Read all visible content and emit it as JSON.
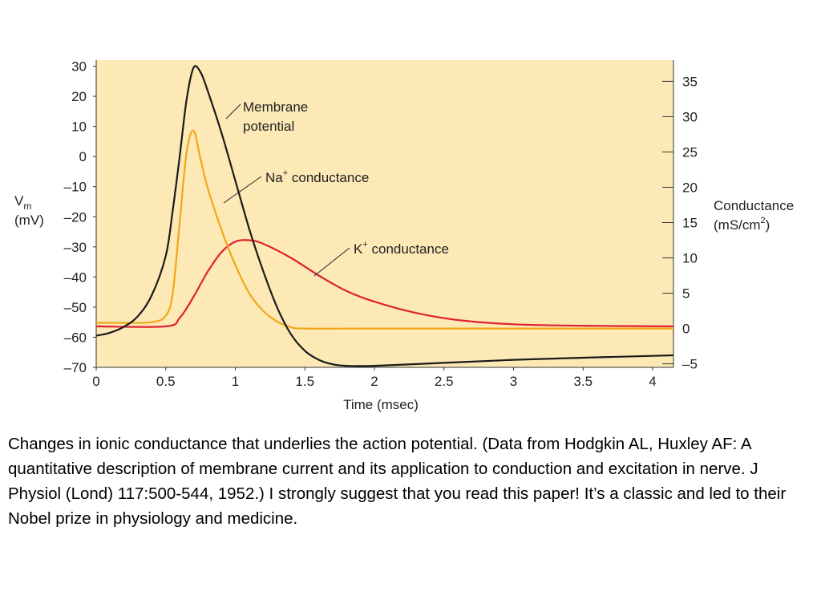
{
  "chart_data": {
    "type": "line",
    "title": "",
    "xlabel": "Time (msec)",
    "xlim": [
      0,
      4.15
    ],
    "xticks": [
      0,
      0.5,
      1,
      1.5,
      2,
      2.5,
      3,
      3.5,
      4
    ],
    "xtick_labels": [
      "0",
      "0.5",
      "1",
      "1.5",
      "2",
      "2.5",
      "3",
      "3.5",
      "4"
    ],
    "ylabel_left": {
      "main": "V",
      "sub": "m",
      "unit": "(mV)"
    },
    "ylim_left": [
      -70,
      32
    ],
    "yticks_left": [
      30,
      20,
      10,
      0,
      -10,
      -20,
      -30,
      -40,
      -50,
      -60,
      -70
    ],
    "ytick_labels_left": [
      "30",
      "20",
      "10",
      "0",
      "–10",
      "–20",
      "–30",
      "–40",
      "–50",
      "–60",
      "–70"
    ],
    "ylabel_right": {
      "main": "Conductance",
      "unit_pre": "(mS/cm",
      "unit_sup": "2",
      "unit_post": ")"
    },
    "ylim_right": [
      -5.5,
      38
    ],
    "yticks_right": [
      35,
      30,
      25,
      20,
      15,
      10,
      5,
      0,
      -5
    ],
    "ytick_labels_right": [
      "35",
      "30",
      "25",
      "20",
      "15",
      "10",
      "5",
      "0",
      "–5"
    ],
    "background_color": "#fde9b6",
    "series": [
      {
        "name": "Membrane potential",
        "axis": "left",
        "color": "#1a1a1a",
        "x": [
          0,
          0.1,
          0.2,
          0.3,
          0.4,
          0.5,
          0.55,
          0.6,
          0.65,
          0.7,
          0.75,
          0.8,
          0.9,
          1.0,
          1.1,
          1.2,
          1.3,
          1.4,
          1.5,
          1.6,
          1.7,
          1.8,
          2.0,
          2.5,
          3.0,
          3.5,
          4.0,
          4.15
        ],
        "y": [
          -59.5,
          -58.5,
          -56.5,
          -53,
          -46,
          -33,
          -18,
          0,
          19,
          29.5,
          28,
          22,
          8,
          -8,
          -24,
          -38,
          -50,
          -59,
          -64.5,
          -67.5,
          -69,
          -69.5,
          -69.5,
          -68.5,
          -67.5,
          -66.8,
          -66.2,
          -66
        ]
      },
      {
        "name": "Na+ conductance",
        "axis": "right",
        "color": "#f0a818",
        "x": [
          0,
          0.2,
          0.4,
          0.5,
          0.55,
          0.6,
          0.65,
          0.7,
          0.75,
          0.8,
          0.9,
          1.0,
          1.1,
          1.2,
          1.3,
          1.4,
          1.5,
          2.0,
          3.0,
          4.15
        ],
        "y": [
          0.8,
          0.8,
          0.9,
          1.8,
          5,
          15,
          25,
          28,
          24,
          20,
          14,
          9,
          5,
          2.5,
          1,
          0.2,
          0,
          0,
          0,
          0
        ]
      },
      {
        "name": "K+ conductance",
        "axis": "right",
        "color": "#e02030",
        "x": [
          0,
          0.5,
          0.6,
          0.7,
          0.8,
          0.9,
          1.0,
          1.1,
          1.2,
          1.4,
          1.6,
          1.8,
          2.0,
          2.3,
          2.6,
          3.0,
          3.5,
          4.15
        ],
        "y": [
          0.3,
          0.3,
          1.5,
          4.5,
          8,
          10.8,
          12.3,
          12.5,
          12,
          10,
          7.5,
          5.3,
          3.8,
          2.2,
          1.2,
          0.6,
          0.4,
          0.3
        ]
      }
    ],
    "annotations": [
      {
        "id": "membrane",
        "lines": [
          "Membrane",
          "potential"
        ]
      },
      {
        "id": "na",
        "base": "Na",
        "sup": "+",
        "rest": " conductance"
      },
      {
        "id": "k",
        "base": "K",
        "sup": "+",
        "rest": " conductance"
      }
    ]
  },
  "caption": "Changes in ionic conductance that underlies the action potential. (Data from Hodgkin AL, Huxley AF: A quantitative description of membrane current and its application to conduction and excitation in nerve. J Physiol (Lond) 117:500-544, 1952.)  I strongly suggest that you read this paper!  It’s a classic and led to their Nobel prize in physiology and medicine."
}
